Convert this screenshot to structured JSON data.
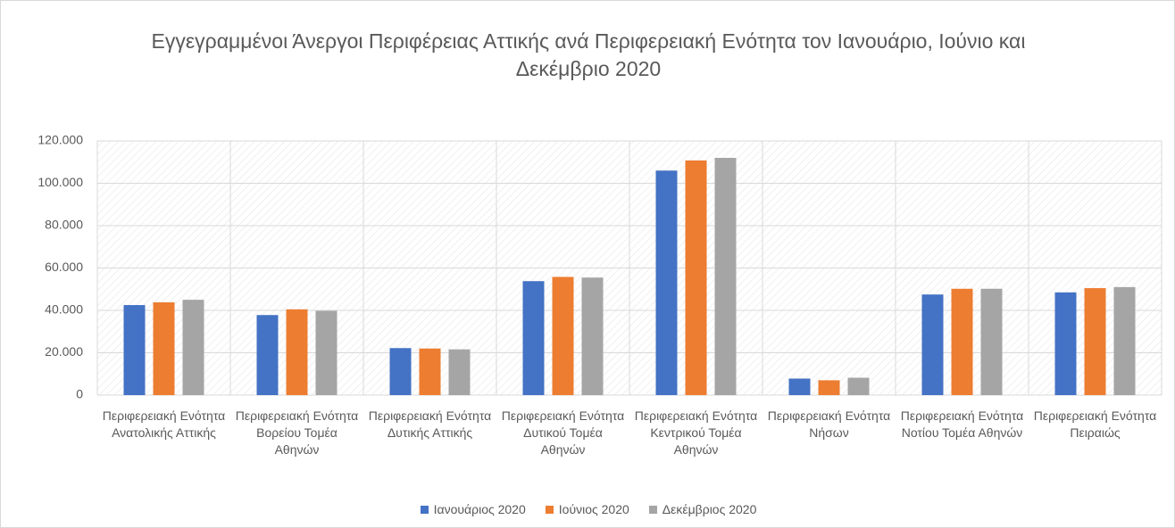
{
  "chart_data": {
    "type": "bar",
    "title": "Εγγεγραμμένοι Άνεργοι Περιφέρειας Αττικής ανά Περιφερειακή Ενότητα τον Ιανουάριο, Ιούνιο και Δεκέμβριο 2020",
    "categories": [
      "Περιφερειακή Ενότητα Ανατολικής Αττικής",
      "Περιφερειακή Ενότητα Βορείου Τομέα Αθηνών",
      "Περιφερειακή Ενότητα Δυτικής Αττικής",
      "Περιφερειακή Ενότητα Δυτικού Τομέα Αθηνών",
      "Περιφερειακή Ενότητα Κεντρικού Τομέα Αθηνών",
      "Περιφερειακή Ενότητα Νήσων",
      "Περιφερειακή Ενότητα Νοτίου Τομέα Αθηνών",
      "Περιφερειακή Ενότητα Πειραιώς"
    ],
    "series": [
      {
        "name": "Ιανουάριος 2020",
        "color": "#4472c4",
        "values": [
          42500,
          37800,
          22200,
          53800,
          106000,
          7800,
          47500,
          48500
        ]
      },
      {
        "name": "Ιούνιος 2020",
        "color": "#ed7d31",
        "values": [
          43800,
          40500,
          22000,
          55800,
          110800,
          7000,
          50200,
          50500
        ]
      },
      {
        "name": "Δεκέμβριος 2020",
        "color": "#a5a5a5",
        "values": [
          45000,
          39800,
          21600,
          55500,
          112000,
          8200,
          50200,
          51000
        ]
      }
    ],
    "ylim": [
      0,
      120000
    ],
    "yticks": [
      0,
      {
        "value": 20000,
        "label": "20.000"
      },
      {
        "value": 40000,
        "label": "40.000"
      },
      {
        "value": 60000,
        "label": "60.000"
      },
      {
        "value": 80000,
        "label": "80.000"
      },
      {
        "value": 100000,
        "label": "100.000"
      },
      {
        "value": 120000,
        "label": "120.000"
      }
    ],
    "grid": true,
    "legend": "bottom"
  }
}
